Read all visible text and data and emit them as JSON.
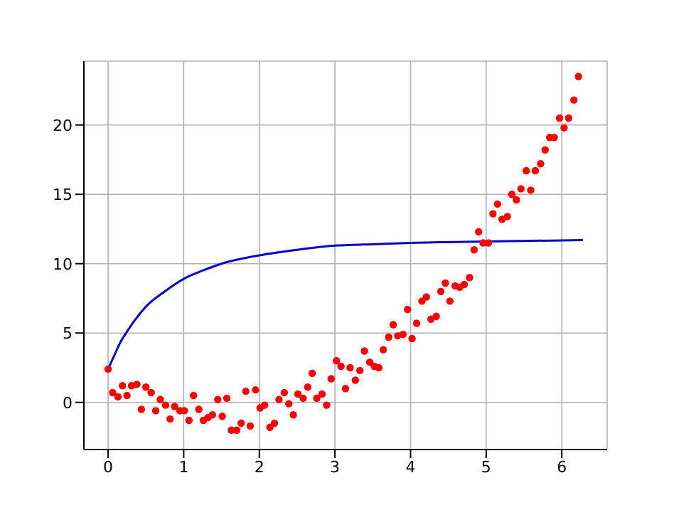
{
  "chart_data": {
    "type": "scatter",
    "xlim": [
      -0.32,
      6.6
    ],
    "ylim": [
      -3.4,
      24.6
    ],
    "xticks": [
      0,
      1,
      2,
      3,
      4,
      5,
      6
    ],
    "yticks": [
      0,
      5,
      10,
      15,
      20
    ],
    "grid": true,
    "legend": false,
    "series": [
      {
        "color": "#ff0000",
        "marker": "circle",
        "x": [
          0,
          0.06,
          0.13,
          0.19,
          0.25,
          0.31,
          0.38,
          0.44,
          0.5,
          0.57,
          0.63,
          0.69,
          0.76,
          0.82,
          0.88,
          0.95,
          1.01,
          1.07,
          1.13,
          1.2,
          1.26,
          1.32,
          1.38,
          1.45,
          1.51,
          1.57,
          1.63,
          1.7,
          1.76,
          1.82,
          1.88,
          1.95,
          2.01,
          2.07,
          2.14,
          2.2,
          2.26,
          2.33,
          2.39,
          2.45,
          2.51,
          2.58,
          2.64,
          2.7,
          2.76,
          2.83,
          2.89,
          2.95,
          3.02,
          3.08,
          3.14,
          3.2,
          3.27,
          3.33,
          3.39,
          3.46,
          3.52,
          3.58,
          3.64,
          3.71,
          3.77,
          3.83,
          3.9,
          3.96,
          4.02,
          4.08,
          4.15,
          4.21,
          4.27,
          4.34,
          4.4,
          4.46,
          4.52,
          4.59,
          4.65,
          4.71,
          4.78,
          4.84,
          4.9,
          4.96,
          5.03,
          5.09,
          5.15,
          5.21,
          5.28,
          5.34,
          5.4,
          5.46,
          5.53,
          5.59,
          5.65,
          5.72,
          5.78,
          5.84,
          5.9,
          5.97,
          6.03,
          6.09,
          6.16,
          6.22
        ],
        "values": [
          2.4,
          0.7,
          0.4,
          1.2,
          0.5,
          1.2,
          1.3,
          -0.5,
          1.1,
          0.7,
          -0.6,
          0.2,
          -0.2,
          -1.2,
          -0.3,
          -0.6,
          -0.6,
          -1.3,
          0.5,
          -0.5,
          -1.3,
          -1.1,
          -0.9,
          0.2,
          -1.0,
          0.3,
          -2.0,
          -2.0,
          -1.5,
          0.8,
          -1.7,
          0.9,
          -0.4,
          -0.2,
          -1.8,
          -1.5,
          0.2,
          0.7,
          -0.1,
          -0.9,
          0.6,
          0.3,
          1.1,
          2.1,
          0.3,
          0.6,
          -0.2,
          1.7,
          3.0,
          2.6,
          1.0,
          2.5,
          1.6,
          2.3,
          3.7,
          2.9,
          2.6,
          2.5,
          3.8,
          4.7,
          5.6,
          4.8,
          4.9,
          6.7,
          4.6,
          5.7,
          7.3,
          7.6,
          6.0,
          6.2,
          8.0,
          8.6,
          7.3,
          8.4,
          8.3,
          8.5,
          9.0,
          11.0,
          12.3,
          11.5,
          11.5,
          13.6,
          14.3,
          13.2,
          13.4,
          15.0,
          14.6,
          15.4,
          16.7,
          15.3,
          16.7,
          17.2,
          18.2,
          19.1,
          19.1,
          20.5,
          19.8,
          20.5,
          21.8,
          23.5
        ]
      },
      {
        "type": "line",
        "color": "#0000cc",
        "marker": "none",
        "line_style": "solid",
        "x": [
          0,
          0.05,
          0.1,
          0.15,
          0.25,
          0.35,
          0.5,
          0.75,
          1,
          1.25,
          1.5,
          2,
          2.5,
          3,
          3.5,
          4,
          5,
          6.28
        ],
        "values": [
          2.4,
          3.0,
          3.6,
          4.2,
          5.1,
          5.9,
          6.9,
          8.0,
          8.9,
          9.5,
          10.0,
          10.6,
          11.0,
          11.3,
          11.4,
          11.5,
          11.6,
          11.7
        ]
      }
    ]
  }
}
